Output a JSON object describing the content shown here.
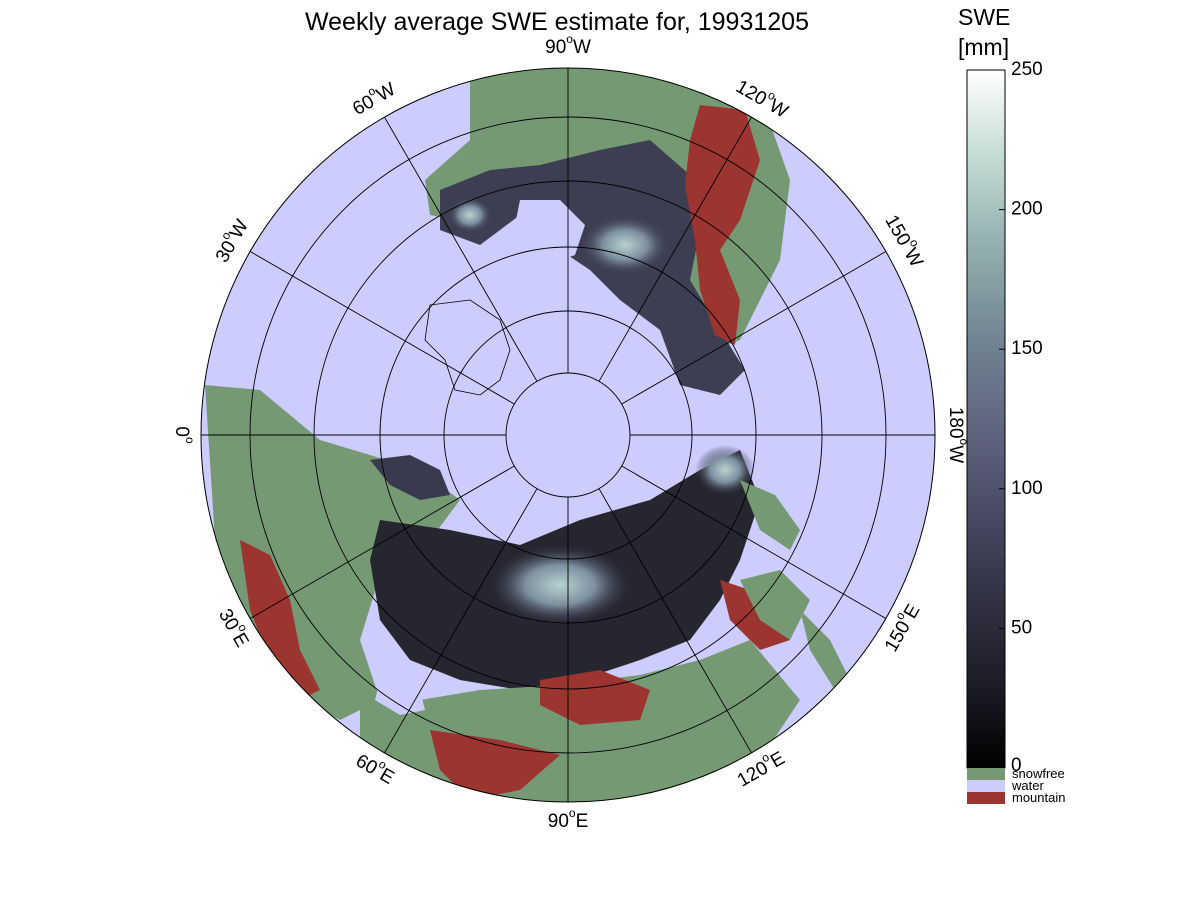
{
  "title": "Weekly average SWE estimate for, 19931205",
  "colorbar": {
    "label_line1": "SWE",
    "label_line2": "[mm]",
    "min": 0,
    "max": 250,
    "ticks": [
      "0",
      "50",
      "100",
      "150",
      "200",
      "250"
    ],
    "gradient_colors": [
      "#000000",
      "#2a2a38",
      "#4f4f68",
      "#6a7590",
      "#8aa8aa",
      "#b8d2cc",
      "#ffffff"
    ],
    "categories": [
      {
        "label": "snowfree",
        "color": "#759a73"
      },
      {
        "label": "water",
        "color": "#ccccff"
      },
      {
        "label": "mountain",
        "color": "#9c3430"
      }
    ]
  },
  "map": {
    "projection": "north-polar-stereographic",
    "ocean_color": "#ccccff",
    "land_snowfree_color": "#759a73",
    "snow_dark_color": "#1e1e28",
    "snow_deep_color": "#a8c8c4",
    "mountain_color": "#9c3430",
    "longitude_labels": [
      {
        "deg": "90",
        "hemi": "W"
      },
      {
        "deg": "120",
        "hemi": "W"
      },
      {
        "deg": "150",
        "hemi": "W"
      },
      {
        "deg": "180",
        "hemi": "W"
      },
      {
        "deg": "150",
        "hemi": "E"
      },
      {
        "deg": "120",
        "hemi": "E"
      },
      {
        "deg": "90",
        "hemi": "E"
      },
      {
        "deg": "60",
        "hemi": "E"
      },
      {
        "deg": "30",
        "hemi": "E"
      },
      {
        "deg": "0",
        "hemi": ""
      },
      {
        "deg": "30",
        "hemi": "W"
      },
      {
        "deg": "60",
        "hemi": "W"
      }
    ]
  }
}
